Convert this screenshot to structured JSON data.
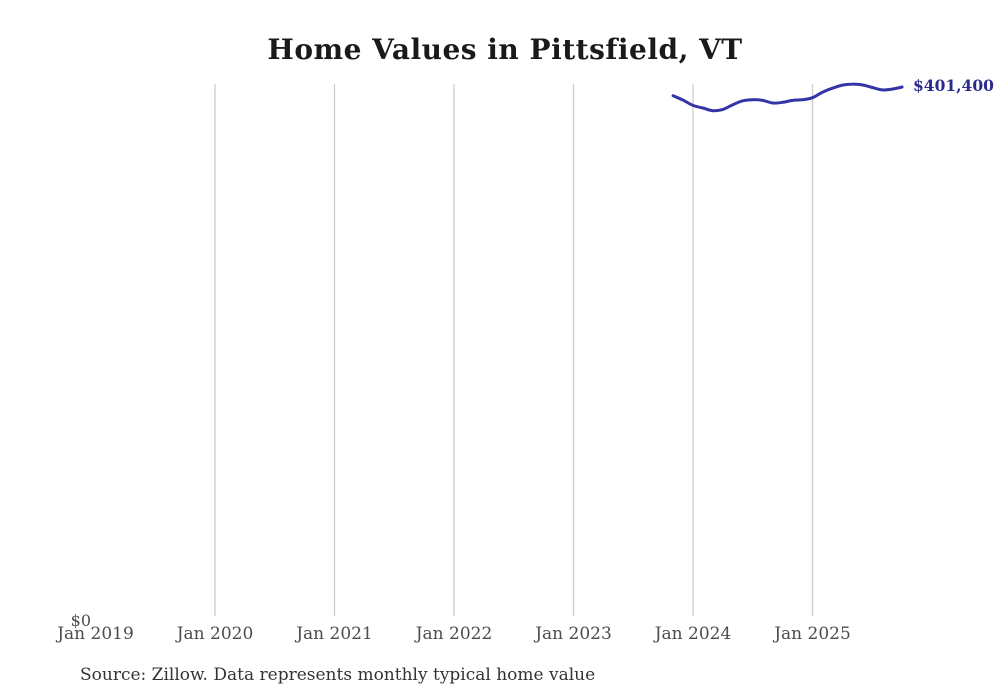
{
  "chart_data": {
    "type": "line",
    "title": "Home Values in Pittsfield, VT",
    "xlabel": "",
    "ylabel": "",
    "legend": "none",
    "grid": "vertical-only",
    "x": [
      "Nov 2023",
      "Dec 2023",
      "Jan 2024",
      "Feb 2024",
      "Mar 2024",
      "Apr 2024",
      "May 2024",
      "Jun 2024",
      "Jul 2024",
      "Aug 2024",
      "Sep 2024",
      "Oct 2024",
      "Nov 2024",
      "Dec 2024",
      "Jan 2025",
      "Feb 2025",
      "Mar 2025",
      "Apr 2025",
      "May 2025",
      "Jun 2025",
      "Jul 2025",
      "Aug 2025",
      "Sep 2025",
      "Oct 2025"
    ],
    "series": [
      {
        "name": "Monthly typical home value",
        "values": [
          394800,
          391500,
          387500,
          385500,
          383500,
          384500,
          388000,
          391000,
          391800,
          391300,
          389300,
          389800,
          391300,
          391800,
          393300,
          397500,
          400500,
          402800,
          403600,
          403000,
          401000,
          399200,
          399800,
          401400
        ]
      }
    ],
    "x_axis": {
      "ticks": [
        {
          "label": "Jan 2019",
          "gridline": false
        },
        {
          "label": "Jan 2020",
          "gridline": true
        },
        {
          "label": "Jan 2021",
          "gridline": true
        },
        {
          "label": "Jan 2022",
          "gridline": true
        },
        {
          "label": "Jan 2023",
          "gridline": true
        },
        {
          "label": "Jan 2024",
          "gridline": true
        },
        {
          "label": "Jan 2025",
          "gridline": true
        }
      ]
    },
    "y_axis": {
      "zero_label": "$0",
      "min": 0
    },
    "latest_value_label": "$401,400"
  },
  "footer": {
    "source": "Source: Zillow. Data represents monthly typical home value"
  },
  "colors": {
    "line": "#3434a8",
    "latest_label_text": "#2b2b8f",
    "gridline": "#cccccc",
    "tick_text": "#4d4d4d",
    "title_text": "#1a1a1a",
    "source_text": "#333333"
  }
}
